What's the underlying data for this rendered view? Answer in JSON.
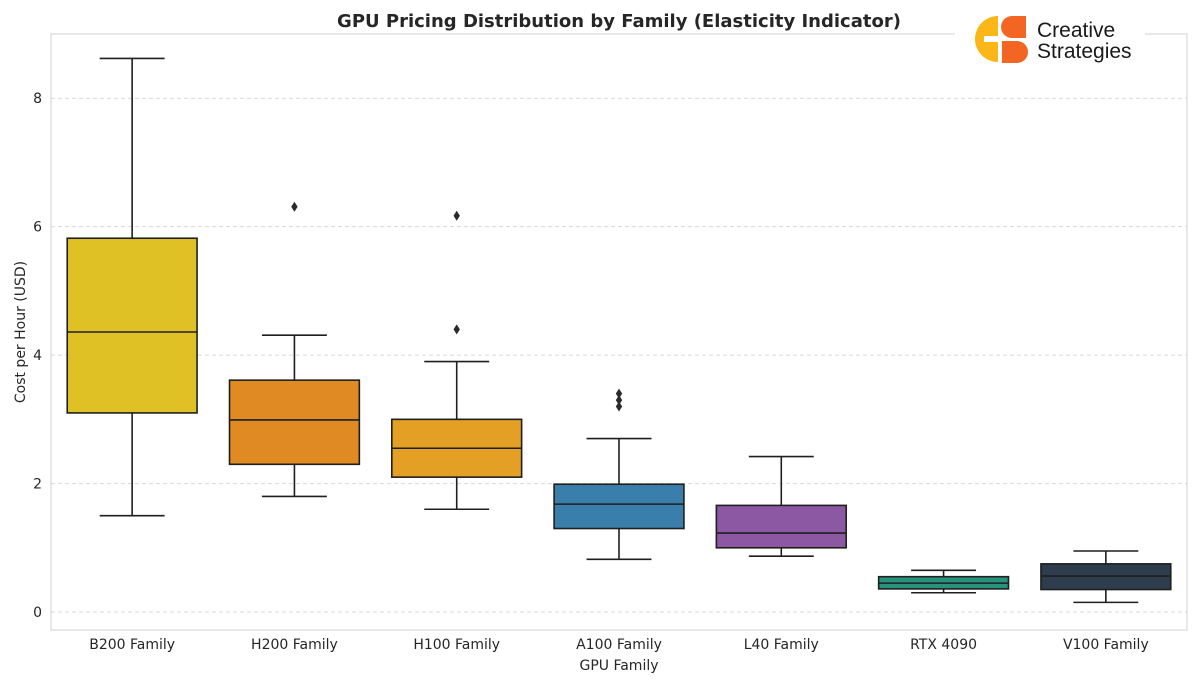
{
  "chart_data": {
    "type": "boxplot",
    "title": "GPU Pricing Distribution by Family (Elasticity Indicator)",
    "xlabel": "GPU Family",
    "ylabel": "Cost per Hour (USD)",
    "ylim": [
      -0.28,
      9.0
    ],
    "yticks": [
      0,
      2,
      4,
      6,
      8
    ],
    "grid": "horizontal-dashed",
    "categories": [
      "B200 Family",
      "H200 Family",
      "H100 Family",
      "A100 Family",
      "L40 Family",
      "RTX 4090",
      "V100 Family"
    ],
    "series": [
      {
        "name": "B200 Family",
        "color": "#dfc125",
        "whisker_low": 1.5,
        "q1": 3.1,
        "median": 4.36,
        "q3": 5.82,
        "whisker_high": 8.62,
        "outliers": []
      },
      {
        "name": "H200 Family",
        "color": "#e08a24",
        "whisker_low": 1.8,
        "q1": 2.3,
        "median": 2.99,
        "q3": 3.61,
        "whisker_high": 4.31,
        "outliers": [
          6.31
        ]
      },
      {
        "name": "H100 Family",
        "color": "#e3a024",
        "whisker_low": 1.6,
        "q1": 2.1,
        "median": 2.55,
        "q3": 3.0,
        "whisker_high": 3.9,
        "outliers": [
          4.4,
          6.17
        ]
      },
      {
        "name": "A100 Family",
        "color": "#3a7eab",
        "whisker_low": 0.82,
        "q1": 1.3,
        "median": 1.68,
        "q3": 1.99,
        "whisker_high": 2.7,
        "outliers": [
          3.2,
          3.3,
          3.4
        ]
      },
      {
        "name": "L40 Family",
        "color": "#8c57a3",
        "whisker_low": 0.87,
        "q1": 1.0,
        "median": 1.23,
        "q3": 1.66,
        "whisker_high": 2.42,
        "outliers": []
      },
      {
        "name": "RTX 4090",
        "color": "#27937c",
        "whisker_low": 0.3,
        "q1": 0.36,
        "median": 0.45,
        "q3": 0.55,
        "whisker_high": 0.65,
        "outliers": []
      },
      {
        "name": "V100 Family",
        "color": "#2e3d4e",
        "whisker_low": 0.15,
        "q1": 0.35,
        "median": 0.56,
        "q3": 0.75,
        "whisker_high": 0.95,
        "outliers": []
      }
    ]
  },
  "logo": {
    "line1": "Creative",
    "line2": "Strategies",
    "colors": {
      "yellow": "#fbb617",
      "orange": "#f26522"
    }
  }
}
